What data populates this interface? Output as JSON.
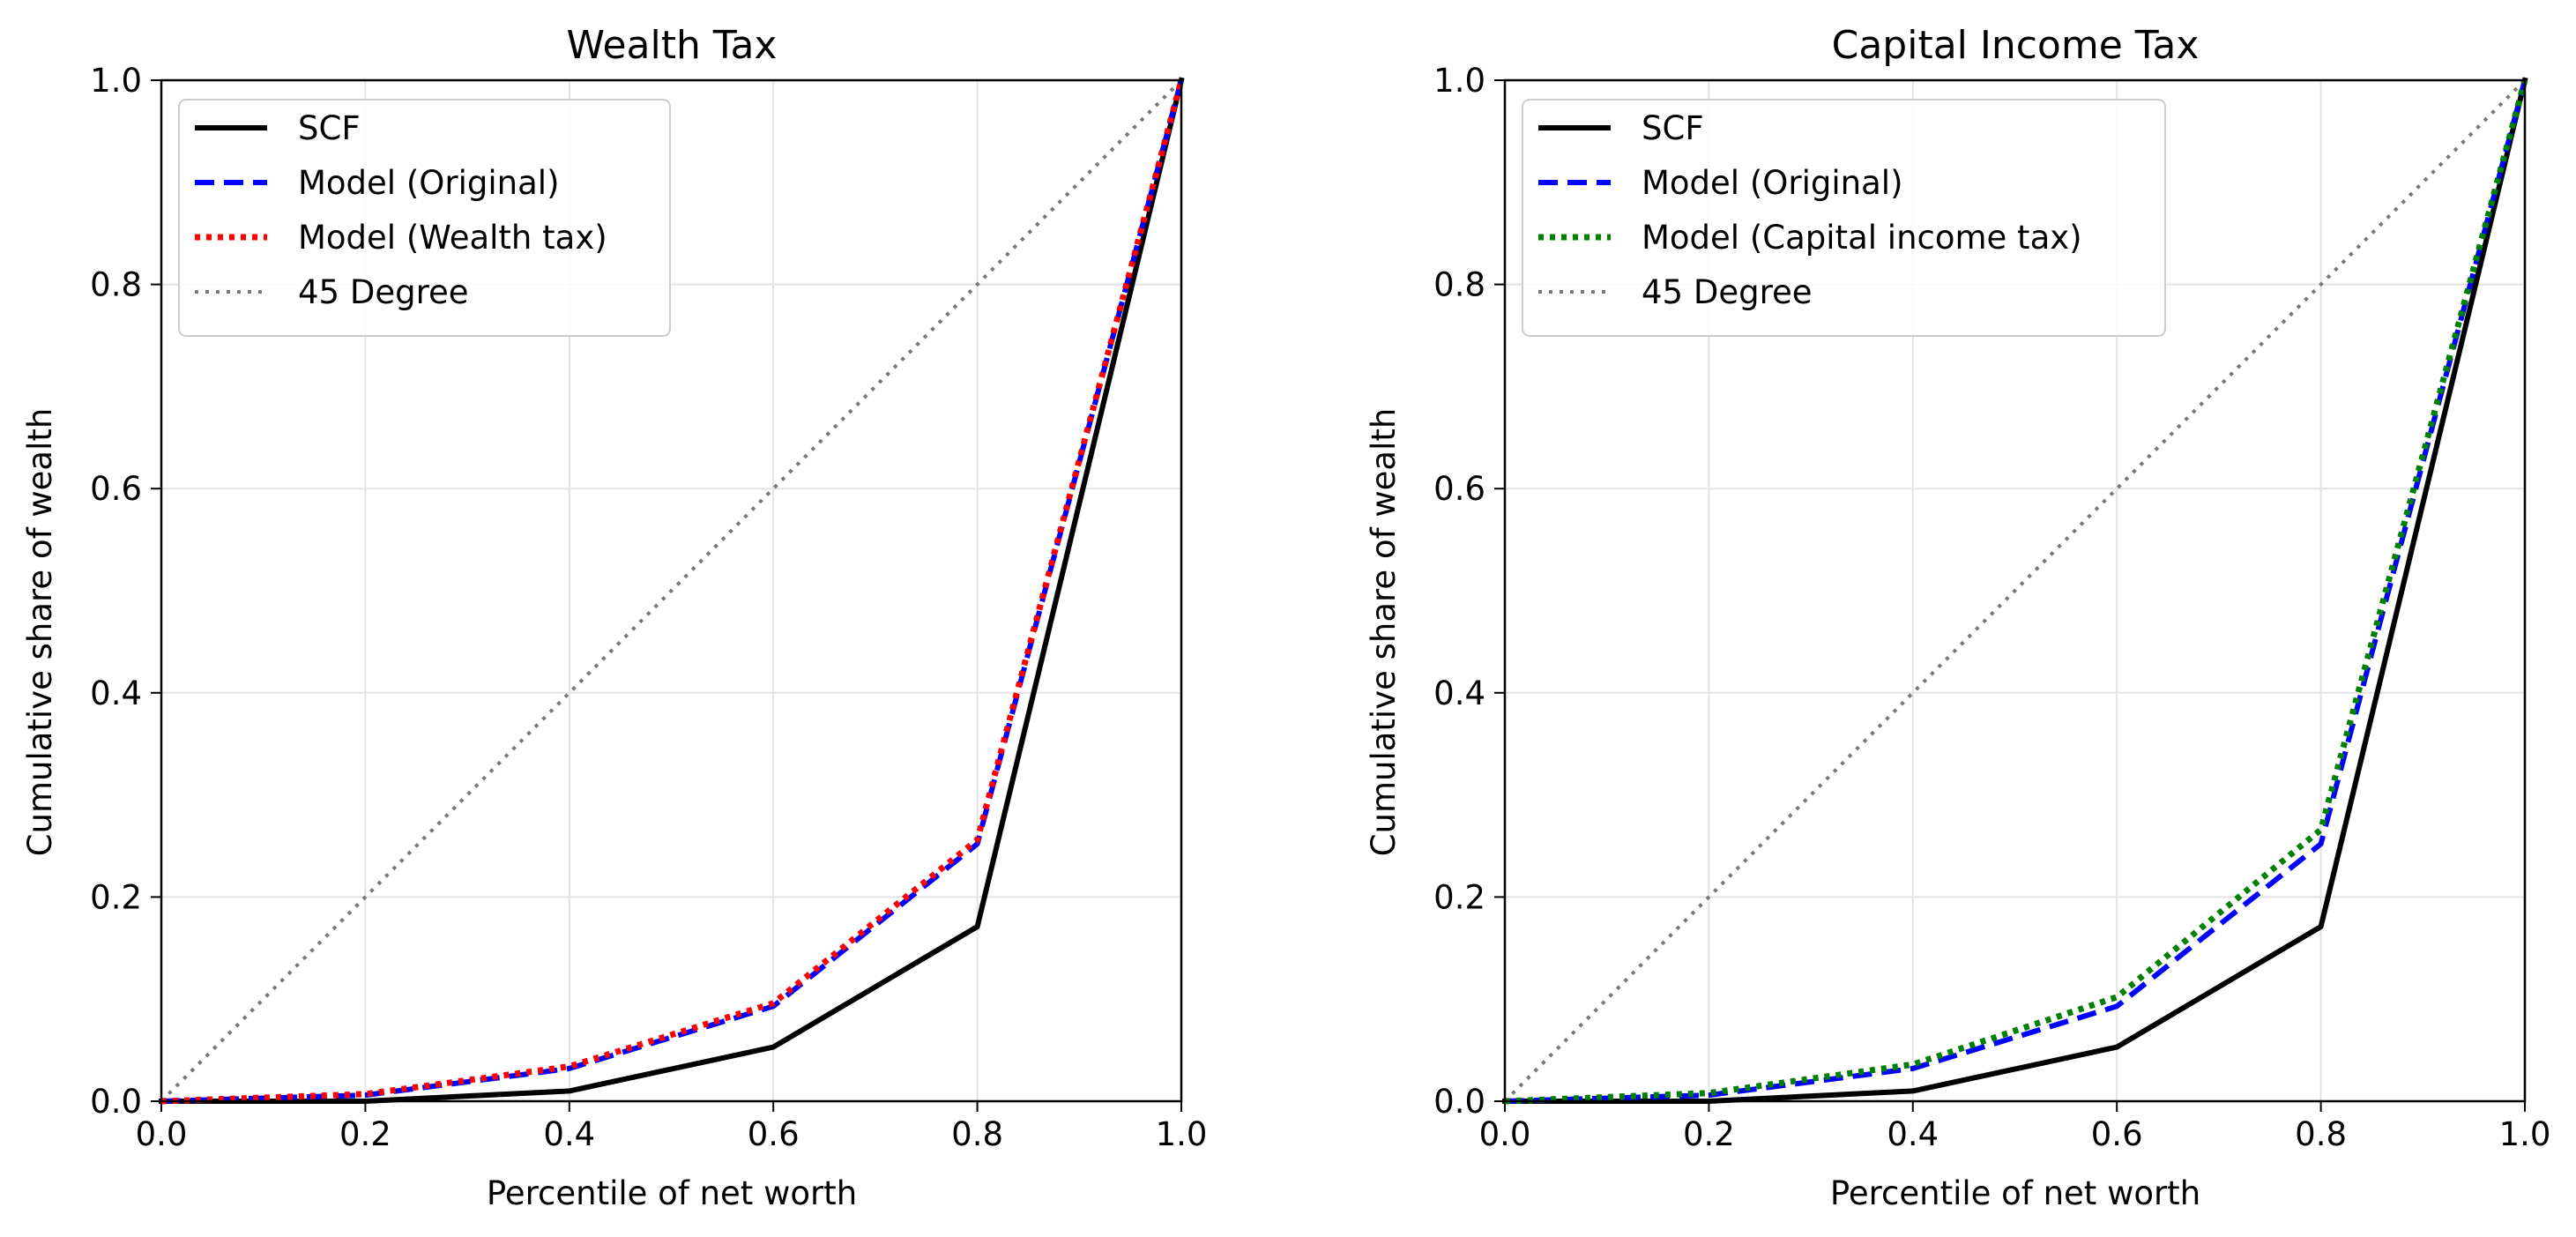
{
  "figure": {
    "background": "#ffffff"
  },
  "chart_data": [
    {
      "type": "line",
      "title": "Wealth Tax",
      "xlabel": "Percentile of net worth",
      "ylabel": "Cumulative share of wealth",
      "xlim": [
        0.0,
        1.0
      ],
      "ylim": [
        0.0,
        1.0
      ],
      "x_ticks": [
        0.0,
        0.2,
        0.4,
        0.6,
        0.8,
        1.0
      ],
      "y_ticks": [
        0.0,
        0.2,
        0.4,
        0.6,
        0.8,
        1.0
      ],
      "x_tick_labels": [
        "0.0",
        "0.2",
        "0.4",
        "0.6",
        "0.8",
        "1.0"
      ],
      "y_tick_labels": [
        "0.0",
        "0.2",
        "0.4",
        "0.6",
        "0.8",
        "1.0"
      ],
      "grid": true,
      "legend_position": "upper-left",
      "x": [
        0.0,
        0.2,
        0.4,
        0.6,
        0.8,
        1.0
      ],
      "series": [
        {
          "name": "SCF",
          "values": [
            0.0,
            0.0,
            0.01,
            0.053,
            0.171,
            1.0
          ],
          "color": "#000000",
          "style": "solid"
        },
        {
          "name": "Model (Original)",
          "values": [
            0.0,
            0.006,
            0.032,
            0.093,
            0.252,
            1.0
          ],
          "color": "#0000ff",
          "style": "dashed"
        },
        {
          "name": "Model (Wealth tax)",
          "values": [
            0.0,
            0.007,
            0.034,
            0.096,
            0.256,
            1.0
          ],
          "color": "#ff0000",
          "style": "dotted"
        },
        {
          "name": "45 Degree",
          "values": [
            0.0,
            0.2,
            0.4,
            0.6,
            0.8,
            1.0
          ],
          "color": "#777777",
          "style": "dotted-thin"
        }
      ]
    },
    {
      "type": "line",
      "title": "Capital Income Tax",
      "xlabel": "Percentile of net worth",
      "ylabel": "Cumulative share of wealth",
      "xlim": [
        0.0,
        1.0
      ],
      "ylim": [
        0.0,
        1.0
      ],
      "x_ticks": [
        0.0,
        0.2,
        0.4,
        0.6,
        0.8,
        1.0
      ],
      "y_ticks": [
        0.0,
        0.2,
        0.4,
        0.6,
        0.8,
        1.0
      ],
      "x_tick_labels": [
        "0.0",
        "0.2",
        "0.4",
        "0.6",
        "0.8",
        "1.0"
      ],
      "y_tick_labels": [
        "0.0",
        "0.2",
        "0.4",
        "0.6",
        "0.8",
        "1.0"
      ],
      "grid": true,
      "legend_position": "upper-left",
      "x": [
        0.0,
        0.2,
        0.4,
        0.6,
        0.8,
        1.0
      ],
      "series": [
        {
          "name": "SCF",
          "values": [
            0.0,
            0.0,
            0.01,
            0.053,
            0.171,
            1.0
          ],
          "color": "#000000",
          "style": "solid"
        },
        {
          "name": "Model (Original)",
          "values": [
            0.0,
            0.006,
            0.032,
            0.093,
            0.252,
            1.0
          ],
          "color": "#0000ff",
          "style": "dashed"
        },
        {
          "name": "Model (Capital income tax)",
          "values": [
            0.0,
            0.008,
            0.036,
            0.102,
            0.266,
            1.0
          ],
          "color": "#008000",
          "style": "dotted"
        },
        {
          "name": "45 Degree",
          "values": [
            0.0,
            0.2,
            0.4,
            0.6,
            0.8,
            1.0
          ],
          "color": "#777777",
          "style": "dotted-thin"
        }
      ]
    }
  ]
}
